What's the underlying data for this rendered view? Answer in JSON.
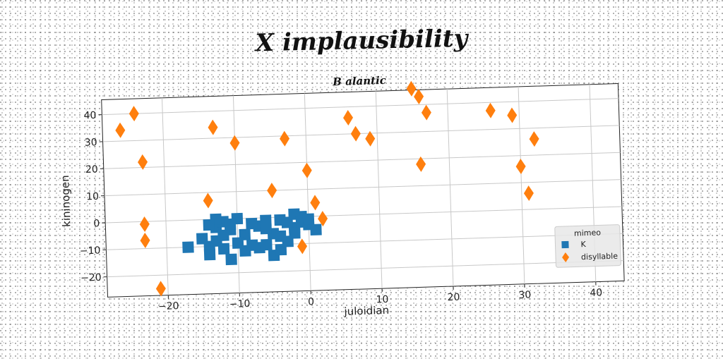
{
  "figure": {
    "title": "X implausibility"
  },
  "chart_data": {
    "type": "scatter",
    "title": "B alantic",
    "xlabel": "juloidian",
    "ylabel": "kininogen",
    "xlim": [
      -28.5,
      44
    ],
    "ylim": [
      -27.5,
      45.5
    ],
    "xticks": [
      -20,
      -10,
      0,
      10,
      20,
      30,
      40
    ],
    "yticks": [
      -20,
      -10,
      0,
      10,
      20,
      30,
      40
    ],
    "grid": true,
    "legend": {
      "title": "mimeo",
      "placement": "lower-right"
    },
    "series": [
      {
        "name": "K",
        "marker": "square",
        "color": "#1f77b4",
        "points": [
          [
            -17,
            -10
          ],
          [
            -14,
            -10
          ],
          [
            -14,
            -13
          ],
          [
            -12,
            -11
          ],
          [
            -11,
            -15
          ],
          [
            -9,
            -12
          ],
          [
            -7,
            -11
          ],
          [
            -5,
            -14
          ],
          [
            -6,
            -10
          ],
          [
            -4,
            -12
          ],
          [
            -3,
            -9
          ],
          [
            -13,
            -3
          ],
          [
            -12,
            -1
          ],
          [
            -11,
            -4
          ],
          [
            -9,
            -6
          ],
          [
            -7,
            -3
          ],
          [
            -5,
            -6
          ],
          [
            -4,
            -1
          ],
          [
            -2,
            -4
          ],
          [
            -1,
            0
          ],
          [
            0,
            -3
          ],
          [
            1,
            -5
          ],
          [
            -13,
            0
          ],
          [
            -10,
            0
          ],
          [
            -8,
            -2
          ],
          [
            -6,
            -4
          ],
          [
            -3,
            -2
          ],
          [
            -2,
            1
          ],
          [
            -15,
            -7
          ],
          [
            -13,
            -8
          ],
          [
            -10,
            -9
          ],
          [
            -8,
            -10
          ],
          [
            -12,
            -6
          ],
          [
            -4,
            -7
          ],
          [
            -1,
            -2
          ],
          [
            -14,
            -2
          ],
          [
            -11,
            -2
          ],
          [
            -6,
            -1
          ],
          [
            -2,
            -6
          ],
          [
            0,
            -1
          ]
        ]
      },
      {
        "name": "disyllable",
        "marker": "diamond",
        "color": "#ff7f0e",
        "points": [
          [
            -26,
            34
          ],
          [
            -24,
            40
          ],
          [
            -23,
            22
          ],
          [
            -23,
            -1
          ],
          [
            -23,
            -7
          ],
          [
            -21,
            -25
          ],
          [
            -14,
            7
          ],
          [
            -13,
            34
          ],
          [
            -10,
            28
          ],
          [
            -5,
            10
          ],
          [
            -3,
            29
          ],
          [
            -1,
            -11
          ],
          [
            0,
            17
          ],
          [
            1,
            5
          ],
          [
            2,
            -1
          ],
          [
            6,
            36
          ],
          [
            7,
            30
          ],
          [
            9,
            28
          ],
          [
            15,
            46
          ],
          [
            16,
            43
          ],
          [
            17,
            37
          ],
          [
            16,
            18
          ],
          [
            26,
            37
          ],
          [
            29,
            35
          ],
          [
            30,
            16
          ],
          [
            31,
            6
          ],
          [
            32,
            26
          ]
        ]
      }
    ]
  }
}
